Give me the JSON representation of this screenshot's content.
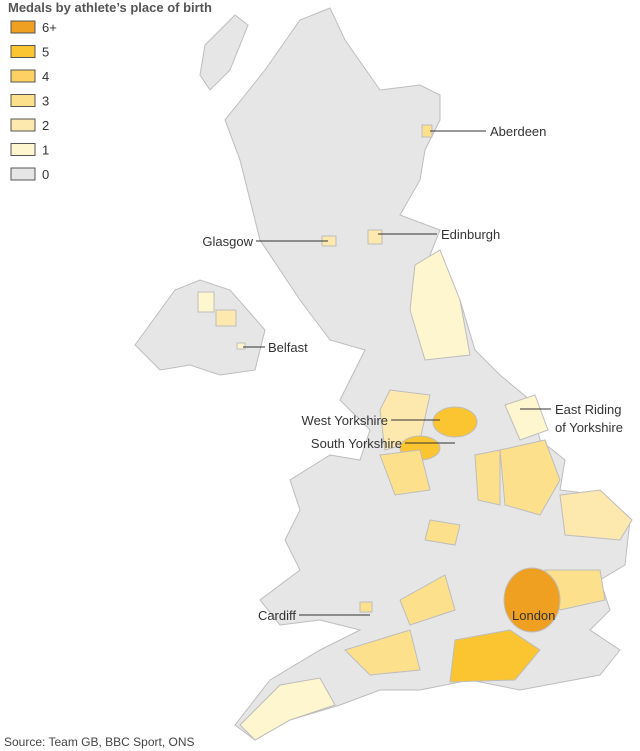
{
  "title": "Medals by athlete’s place of birth",
  "legend": [
    {
      "label": "6+",
      "color": "#f0a020"
    },
    {
      "label": "5",
      "color": "#fbc531"
    },
    {
      "label": "4",
      "color": "#fdd164"
    },
    {
      "label": "3",
      "color": "#fde08c"
    },
    {
      "label": "2",
      "color": "#fde8ae"
    },
    {
      "label": "1",
      "color": "#fef6cf"
    },
    {
      "label": "0",
      "color": "#e6e6e6"
    }
  ],
  "places": [
    {
      "lines": [
        "Aberdeen"
      ]
    },
    {
      "lines": [
        "Glasgow"
      ]
    },
    {
      "lines": [
        "Edinburgh"
      ]
    },
    {
      "lines": [
        "Belfast"
      ]
    },
    {
      "lines": [
        "West Yorkshire"
      ]
    },
    {
      "lines": [
        "South Yorkshire"
      ]
    },
    {
      "lines": [
        "East Riding",
        "of Yorkshire"
      ]
    },
    {
      "lines": [
        "Cardiff"
      ]
    },
    {
      "lines": [
        "London"
      ]
    }
  ],
  "source": "Source: Team GB, BBC Sport, ONS"
}
